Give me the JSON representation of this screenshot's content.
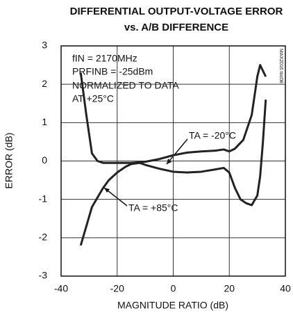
{
  "chart_data": {
    "type": "line",
    "title": "DIFFERENTIAL OUTPUT-VOLTAGE ERROR",
    "subtitle": "vs. A/B DIFFERENCE",
    "x_label": "MAGNITUDE RATIO (dB)",
    "y_label": "ERROR (dB)",
    "annotations": [
      "fIN = 2170MHz",
      "PRFINB = -25dBm",
      "NORMALIZED TO DATA",
      "AT +25°C",
      "TA = -20°C",
      "TA = +85°C",
      "MAX2016 toc08"
    ],
    "xlim": [
      -40,
      40
    ],
    "xticks": [
      -40,
      -20,
      0,
      20,
      40
    ],
    "ylim": [
      -3,
      3
    ],
    "yticks": [
      -3,
      -2,
      -1,
      0,
      1,
      2,
      3
    ],
    "grid": true,
    "series": [
      {
        "color": "#222222",
        "x": [
          -33,
          -31,
          -29,
          -27,
          -25,
          -20,
          -15,
          -10,
          -5,
          0,
          5,
          10,
          15,
          18,
          20,
          22,
          25,
          28,
          30,
          31,
          32,
          33
        ],
        "values": [
          2.3,
          1.2,
          0.2,
          0.0,
          -0.05,
          -0.05,
          -0.05,
          -0.02,
          0.05,
          0.15,
          0.22,
          0.25,
          0.27,
          0.3,
          0.25,
          0.32,
          0.55,
          1.2,
          2.2,
          2.5,
          2.35,
          2.2
        ]
      },
      {
        "color": "#222222",
        "x": [
          -33,
          -31,
          -29,
          -27,
          -25,
          -23,
          -20,
          -17,
          -15,
          -12,
          -10,
          -5,
          0,
          5,
          10,
          15,
          18,
          20,
          22,
          24,
          26,
          28,
          30,
          31,
          32,
          33
        ],
        "values": [
          -2.2,
          -1.7,
          -1.2,
          -0.95,
          -0.7,
          -0.5,
          -0.3,
          -0.15,
          -0.08,
          -0.05,
          -0.1,
          -0.2,
          -0.28,
          -0.3,
          -0.28,
          -0.22,
          -0.18,
          -0.3,
          -0.7,
          -1.0,
          -1.1,
          -1.15,
          -0.9,
          -0.4,
          0.5,
          1.6
        ]
      }
    ]
  }
}
